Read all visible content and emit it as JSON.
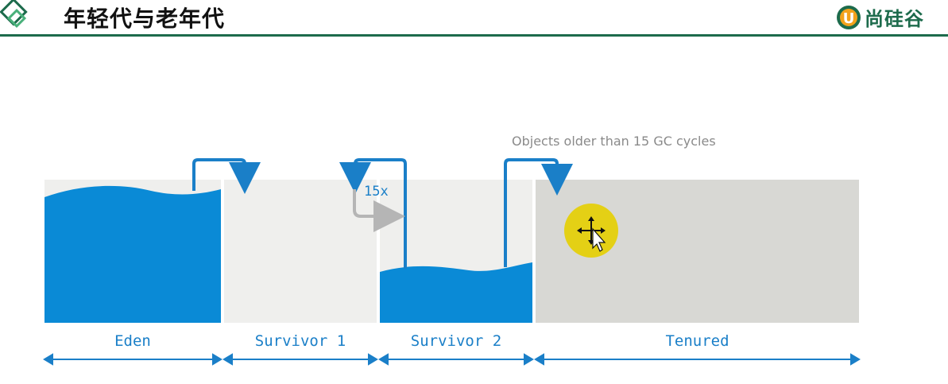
{
  "header": {
    "title": "年轻代与老年代",
    "logo_text": "尚硅谷",
    "logo_letter": "U"
  },
  "diagram": {
    "note": "Objects older than 15 GC cycles",
    "cycle_label": "15x",
    "regions": [
      {
        "id": "eden",
        "label": "Eden"
      },
      {
        "id": "survivor1",
        "label": "Survivor 1"
      },
      {
        "id": "survivor2",
        "label": "Survivor 2"
      },
      {
        "id": "tenured",
        "label": "Tenured"
      }
    ],
    "colors": {
      "water": "#0a8ad6",
      "arrow": "#1a7fc8",
      "cycle_arrow": "#b5b5b5",
      "light_region": "#efefed",
      "tenured_region": "#d8d8d4",
      "accent": "#1d6b4c",
      "cursor_highlight": "#e6cf00"
    },
    "icons": [
      "move-cursor-icon"
    ]
  }
}
